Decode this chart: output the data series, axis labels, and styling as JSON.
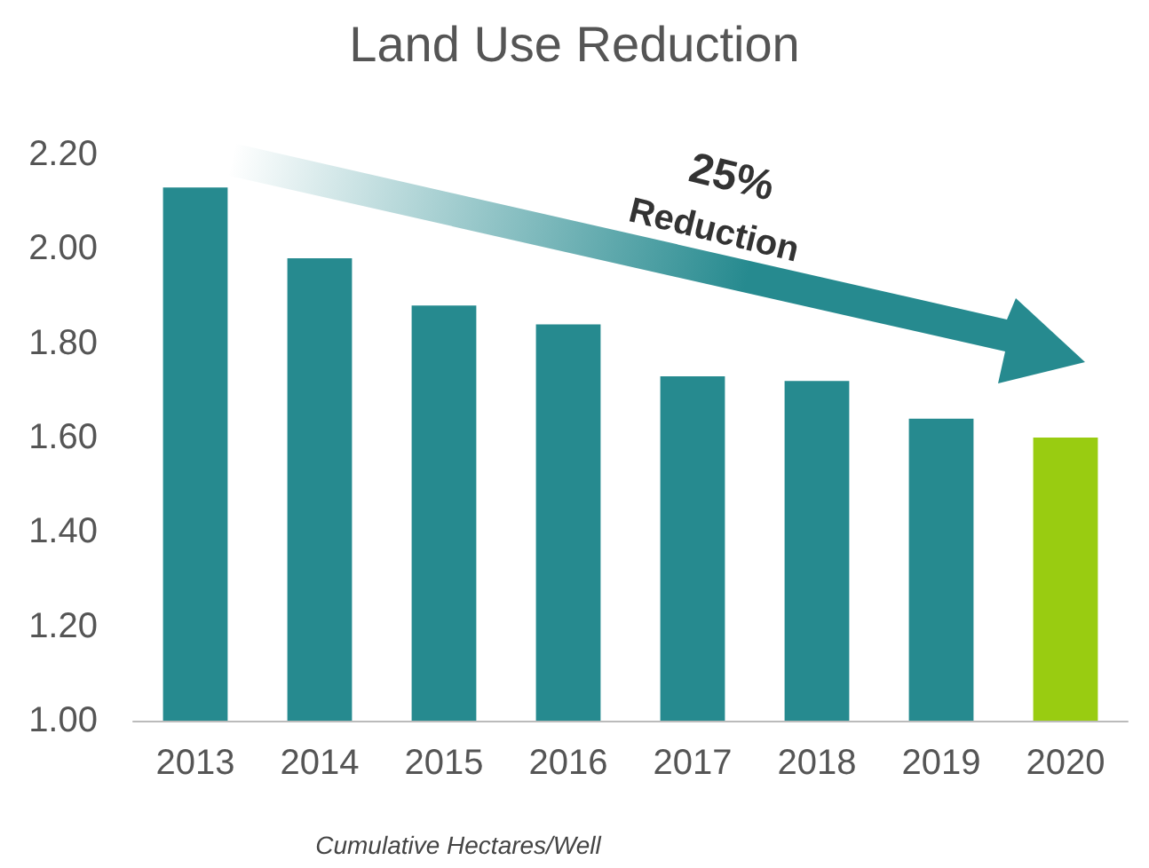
{
  "chart_data": {
    "type": "bar",
    "title": "Land Use Reduction",
    "xlabel": "Cumulative Hectares/Well",
    "categories": [
      "2013",
      "2014",
      "2015",
      "2016",
      "2017",
      "2018",
      "2019",
      "2020"
    ],
    "values": [
      2.13,
      1.98,
      1.88,
      1.84,
      1.73,
      1.72,
      1.64,
      1.6
    ],
    "colors": [
      "#268a8f",
      "#268a8f",
      "#268a8f",
      "#268a8f",
      "#268a8f",
      "#268a8f",
      "#268a8f",
      "#99cc11"
    ],
    "ylim": [
      1,
      2.2
    ],
    "yticks": [
      {
        "value": 1,
        "label": "1.00"
      },
      {
        "value": 1.2,
        "label": "1.20"
      },
      {
        "value": 1.4,
        "label": "1.40"
      },
      {
        "value": 1.6,
        "label": "1.60"
      },
      {
        "value": 1.8,
        "label": "1.80"
      },
      {
        "value": 2,
        "label": "2.00"
      },
      {
        "value": 2.2,
        "label": "2.20"
      }
    ],
    "grid": false,
    "annotations": [
      "25%",
      "Reduction"
    ]
  }
}
